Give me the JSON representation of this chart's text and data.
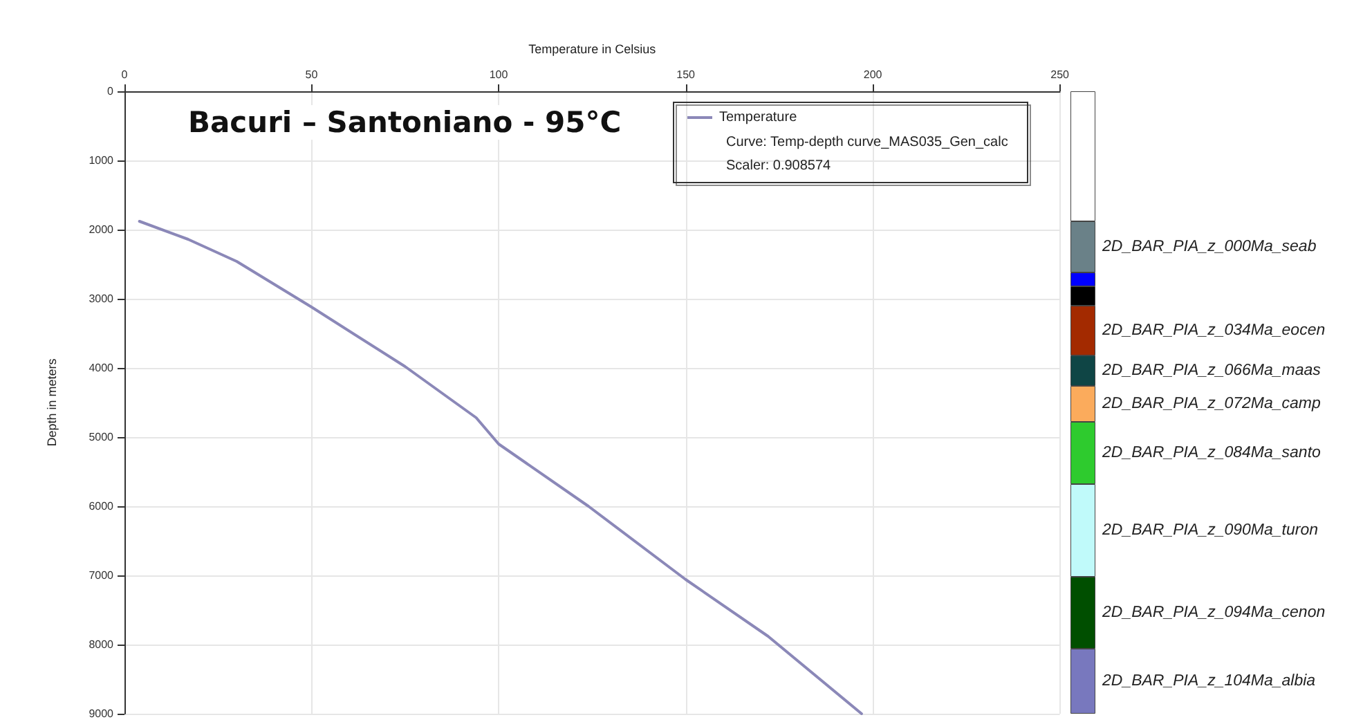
{
  "chart_data": [
    {
      "type": "line",
      "title": "Bacuri – Santoniano - 95°C",
      "xlabel": "Temperature in Celsius",
      "ylabel": "Depth in meters",
      "series": [
        {
          "name": "Temperature",
          "color": "#8b88b8",
          "x": [
            4,
            17,
            30,
            50,
            75,
            94,
            100,
            124,
            150,
            172,
            197
          ],
          "values": [
            1880,
            2140,
            2460,
            3120,
            3980,
            4720,
            5100,
            6000,
            7060,
            7880,
            9000
          ]
        }
      ],
      "xlim": [
        0,
        250
      ],
      "xticks": [
        0,
        50,
        100,
        150,
        200,
        250
      ],
      "ylim": [
        9000,
        0
      ],
      "yticks": [
        0,
        1000,
        2000,
        3000,
        4000,
        5000,
        6000,
        7000,
        8000,
        9000
      ],
      "grid": true,
      "legend": "top right",
      "marker": "none",
      "line_style": "solid",
      "annotations": [
        "Curve: Temp-depth curve_MAS035_Gen_calc",
        "Scaler: 0.908574"
      ]
    },
    {
      "type": "bar",
      "stacked": true,
      "categories": [
        null
      ],
      "ylim": [
        9000,
        0
      ],
      "tick_labels": false,
      "series": [
        {
          "color": "#ffffff",
          "values": [
            1880
          ]
        },
        {
          "name": "2D_BAR_PIA_z_000Ma_seab",
          "color": "#6a8188",
          "values": [
            740
          ]
        },
        {
          "color": "#0000ff",
          "values": [
            200
          ]
        },
        {
          "color": "#000000",
          "values": [
            280
          ]
        },
        {
          "name": "2D_BAR_PIA_z_034Ma_eocen",
          "color": "#a32a00",
          "values": [
            720
          ]
        },
        {
          "name": "2D_BAR_PIA_z_066Ma_maas",
          "color": "#0f4545",
          "values": [
            440
          ]
        },
        {
          "name": "2D_BAR_PIA_z_072Ma_camp",
          "color": "#fbab5c",
          "values": [
            520
          ]
        },
        {
          "name": "2D_BAR_PIA_z_084Ma_santo",
          "color": "#2ecb2e",
          "values": [
            900
          ]
        },
        {
          "name": "2D_BAR_PIA_z_090Ma_turon",
          "color": "#c0fafa",
          "values": [
            1340
          ]
        },
        {
          "name": "2D_BAR_PIA_z_094Ma_cenon",
          "color": "#004f00",
          "values": [
            1040
          ]
        },
        {
          "name": "2D_BAR_PIA_z_104Ma_albia",
          "color": "#7878be",
          "values": [
            940
          ]
        }
      ]
    }
  ]
}
